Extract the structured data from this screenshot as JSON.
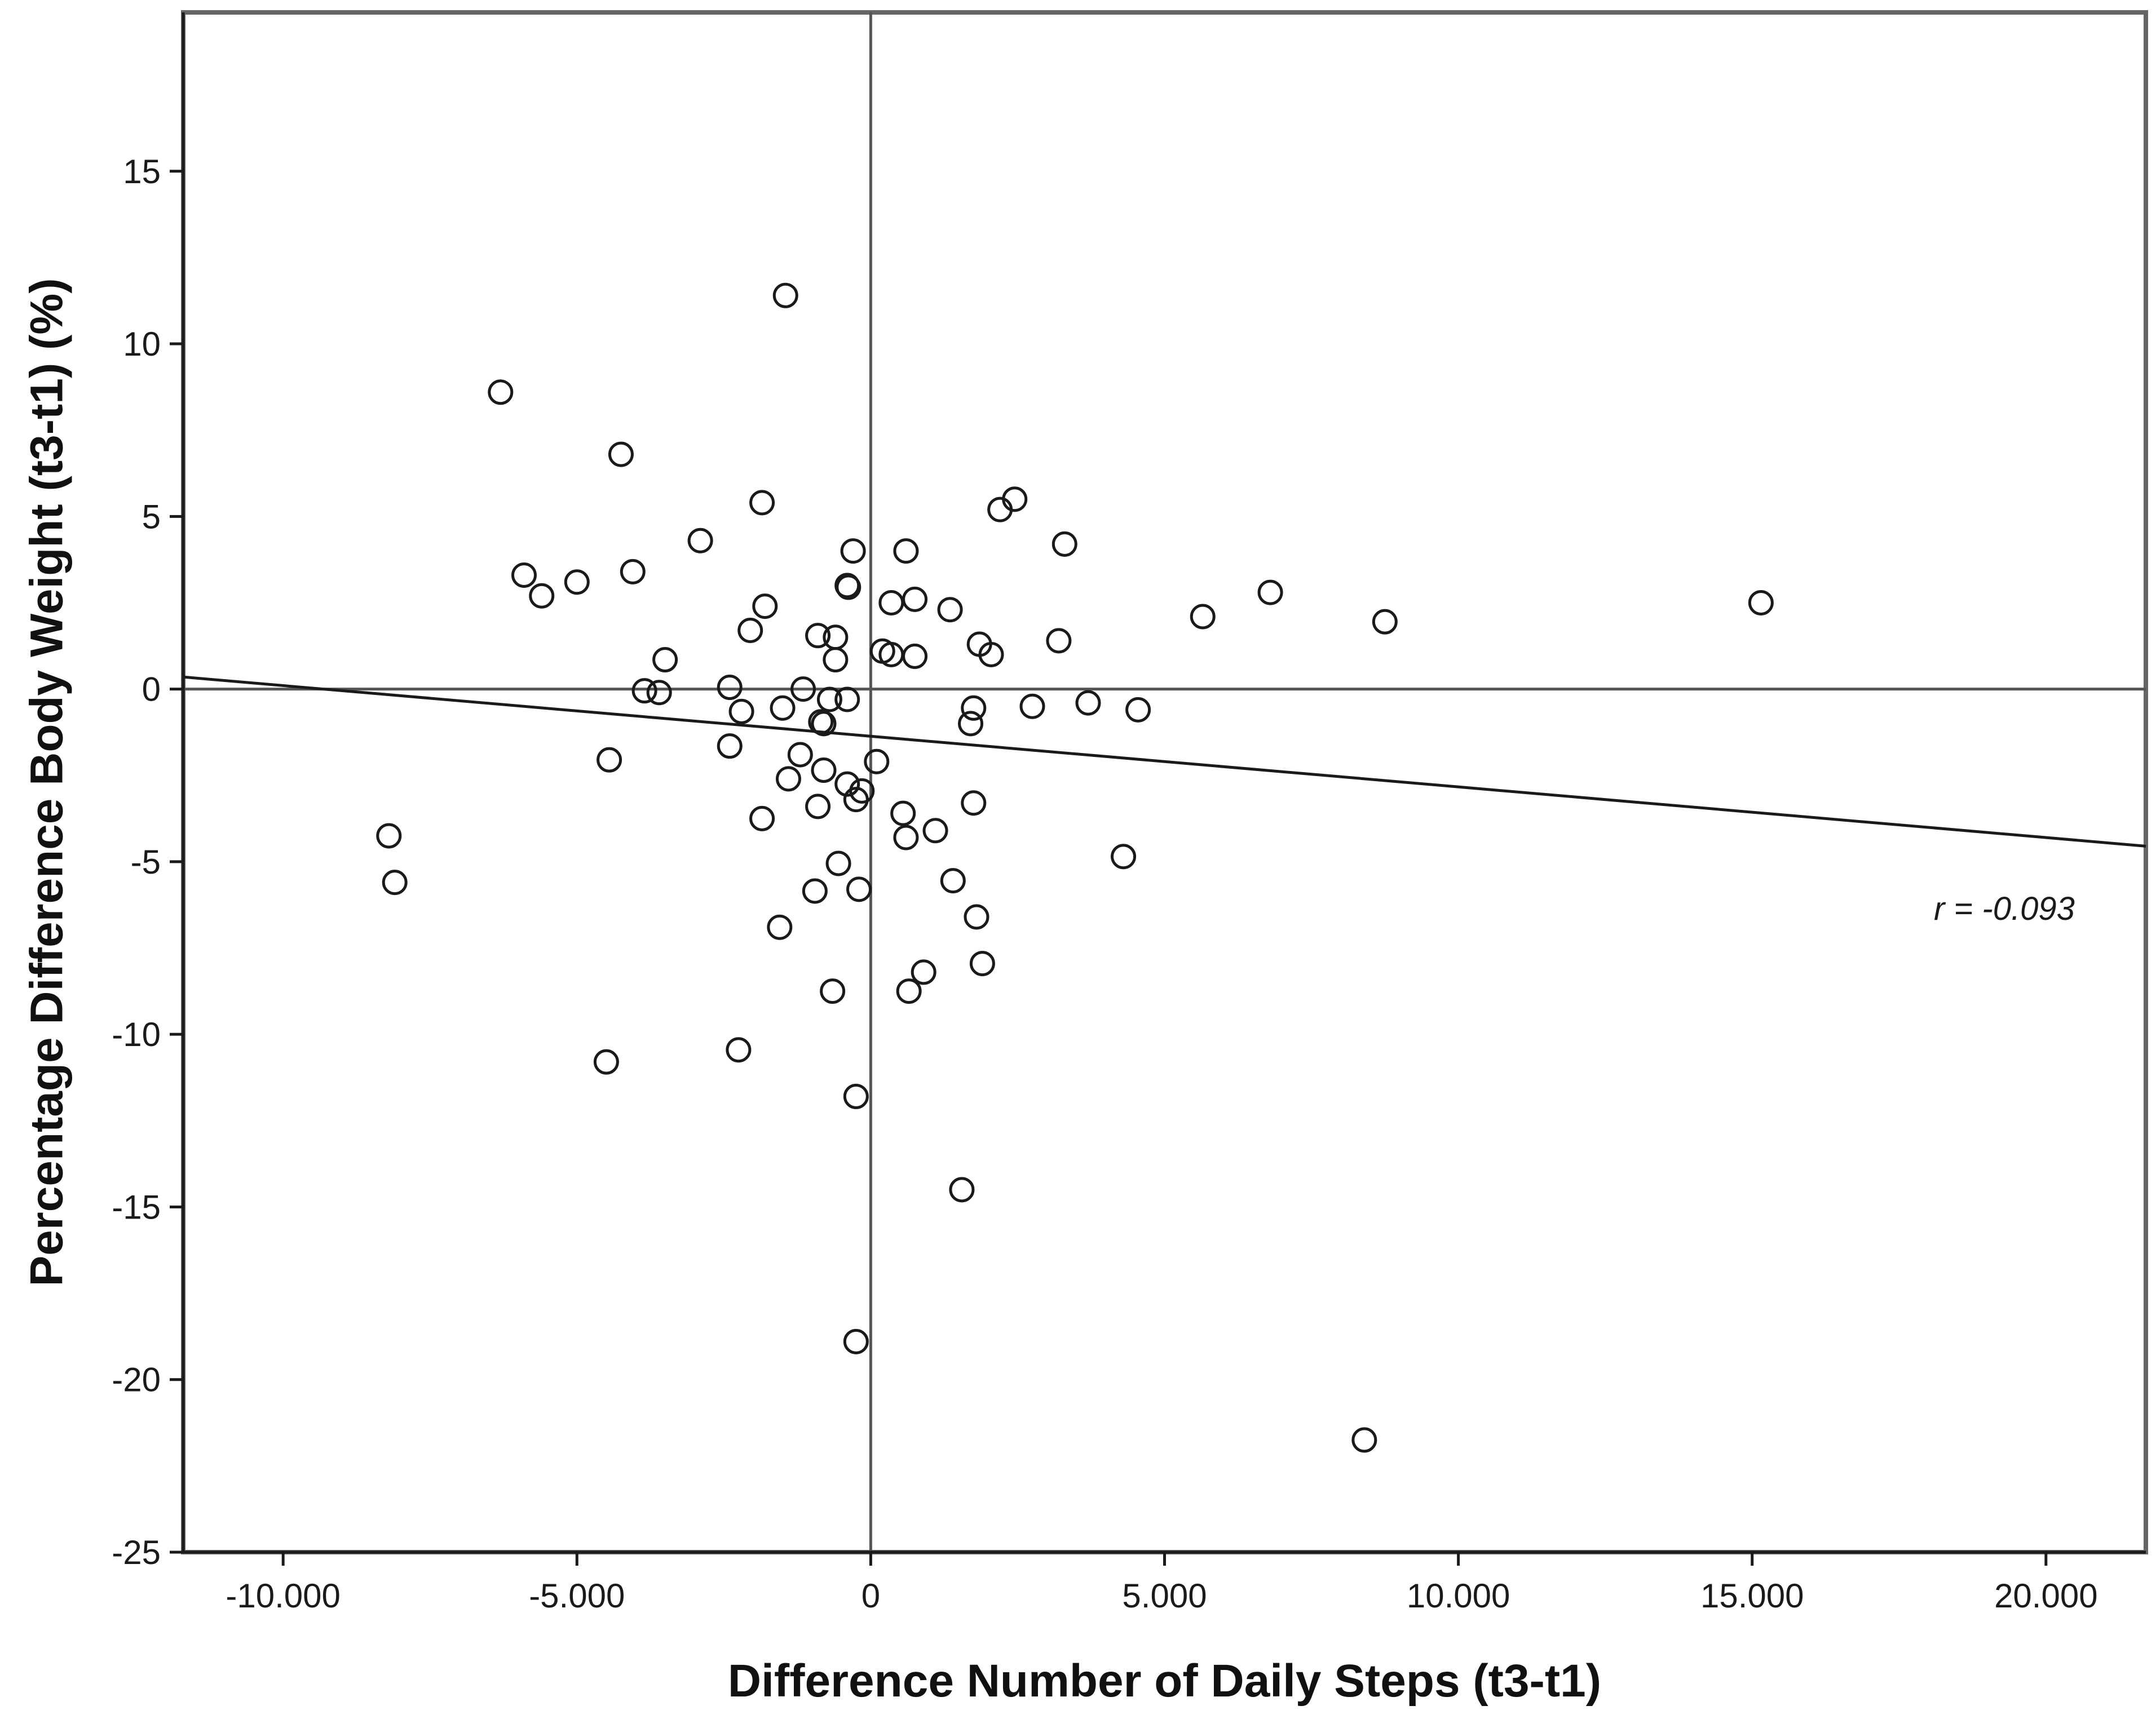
{
  "chart_data": {
    "type": "scatter",
    "title": "",
    "xlabel": "Difference Number of Daily Steps (t3-t1)",
    "ylabel": "Percentage Difference Body Weight (t3-t1) (%)",
    "xlim": [
      -11700,
      21700
    ],
    "ylim": [
      -25,
      19.6
    ],
    "x_ticks": [
      -10000,
      -5000,
      0,
      5000,
      10000,
      15000,
      20000
    ],
    "x_tick_labels": [
      "-10.000",
      "-5.000",
      "0",
      "5.000",
      "10.000",
      "15.000",
      "20.000"
    ],
    "y_ticks": [
      15,
      10,
      5,
      0,
      -5,
      -10,
      -15,
      -20,
      -25
    ],
    "y_tick_labels": [
      "15",
      "10",
      "5",
      "0",
      "-5",
      "-10",
      "-15",
      "-20",
      "-25"
    ],
    "grid": false,
    "reference_lines": {
      "x": 0,
      "y": 0
    },
    "regression_line": {
      "points": [
        [
          -11700,
          0.35
        ],
        [
          21700,
          -4.55
        ]
      ]
    },
    "annotation": "r = -0.093",
    "colors": {
      "marker_stroke": "#1a1a1a",
      "line": "#1a1a1a",
      "frame": "#666666"
    },
    "series": [
      {
        "name": "participants",
        "points": [
          [
            -1450,
            11.4
          ],
          [
            -6300,
            8.6
          ],
          [
            -4250,
            6.8
          ],
          [
            -1850,
            5.4
          ],
          [
            2200,
            5.2
          ],
          [
            2450,
            5.5
          ],
          [
            -2900,
            4.3
          ],
          [
            3300,
            4.2
          ],
          [
            -300,
            4.0
          ],
          [
            600,
            4.0
          ],
          [
            -5900,
            3.3
          ],
          [
            -5600,
            2.7
          ],
          [
            -5000,
            3.1
          ],
          [
            -4050,
            3.4
          ],
          [
            -400,
            3.0
          ],
          [
            -380,
            2.95
          ],
          [
            6800,
            2.8
          ],
          [
            750,
            2.6
          ],
          [
            350,
            2.5
          ],
          [
            1350,
            2.3
          ],
          [
            -1800,
            2.4
          ],
          [
            5650,
            2.1
          ],
          [
            8750,
            1.95
          ],
          [
            15150,
            2.5
          ],
          [
            -2050,
            1.7
          ],
          [
            -900,
            1.55
          ],
          [
            -600,
            1.5
          ],
          [
            1850,
            1.3
          ],
          [
            3200,
            1.4
          ],
          [
            2050,
            1.0
          ],
          [
            200,
            1.1
          ],
          [
            350,
            1.0
          ],
          [
            750,
            0.95
          ],
          [
            -3500,
            0.85
          ],
          [
            -600,
            0.85
          ],
          [
            -3850,
            -0.05
          ],
          [
            -3600,
            -0.1
          ],
          [
            -2400,
            0.05
          ],
          [
            -1150,
            0.0
          ],
          [
            -700,
            -0.3
          ],
          [
            -400,
            -0.3
          ],
          [
            -1500,
            -0.55
          ],
          [
            -2200,
            -0.65
          ],
          [
            -850,
            -0.95
          ],
          [
            -800,
            -1.0
          ],
          [
            1750,
            -0.55
          ],
          [
            1700,
            -1.0
          ],
          [
            2750,
            -0.5
          ],
          [
            3700,
            -0.4
          ],
          [
            4550,
            -0.6
          ],
          [
            -4450,
            -2.05
          ],
          [
            -2400,
            -1.65
          ],
          [
            -1200,
            -1.9
          ],
          [
            100,
            -2.1
          ],
          [
            -800,
            -2.35
          ],
          [
            -1400,
            -2.6
          ],
          [
            -400,
            -2.75
          ],
          [
            -150,
            -2.95
          ],
          [
            -250,
            -3.2
          ],
          [
            -900,
            -3.4
          ],
          [
            -1850,
            -3.75
          ],
          [
            550,
            -3.6
          ],
          [
            600,
            -4.3
          ],
          [
            1100,
            -4.1
          ],
          [
            1750,
            -3.3
          ],
          [
            -8200,
            -4.25
          ],
          [
            -8100,
            -5.6
          ],
          [
            -550,
            -5.05
          ],
          [
            -950,
            -5.85
          ],
          [
            -200,
            -5.8
          ],
          [
            1400,
            -5.55
          ],
          [
            4300,
            -4.85
          ],
          [
            -1550,
            -6.9
          ],
          [
            1800,
            -6.6
          ],
          [
            -650,
            -8.75
          ],
          [
            650,
            -8.75
          ],
          [
            900,
            -8.2
          ],
          [
            1900,
            -7.95
          ],
          [
            -4500,
            -10.8
          ],
          [
            -2250,
            -10.45
          ],
          [
            -250,
            -11.8
          ],
          [
            1550,
            -14.5
          ],
          [
            -250,
            -18.9
          ],
          [
            8400,
            -21.75
          ]
        ]
      }
    ]
  }
}
